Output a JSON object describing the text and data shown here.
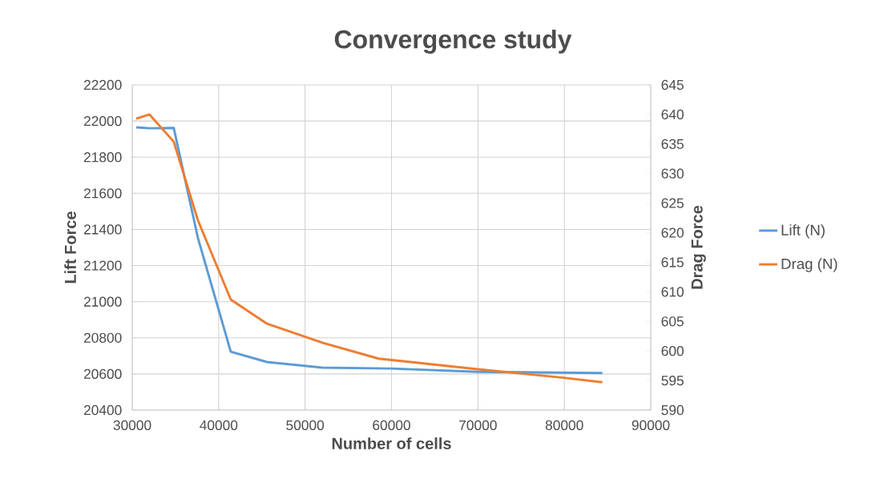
{
  "chart_data": {
    "type": "line",
    "title": "Convergence study",
    "xlabel": "Number of cells",
    "ylabel": "Lift Force",
    "y2label": "Drag  Force",
    "xlim": [
      30000,
      90000
    ],
    "xticks": [
      30000,
      40000,
      50000,
      60000,
      70000,
      80000,
      90000
    ],
    "ylim": [
      20400,
      22200
    ],
    "yticks": [
      20400,
      20600,
      20800,
      21000,
      21200,
      21400,
      21600,
      21800,
      22000,
      22200
    ],
    "y2lim": [
      590,
      645
    ],
    "y2ticks": [
      590,
      595,
      600,
      605,
      610,
      615,
      620,
      625,
      630,
      635,
      640,
      645
    ],
    "grid": true,
    "legend": "right",
    "marker": "none",
    "line_style": "solid",
    "series": [
      {
        "name": "Lift (N)",
        "color": "#5b9bd5",
        "x": [
          30460,
          32000,
          34800,
          37600,
          41400,
          45600,
          52000,
          60000,
          70000,
          84400
        ],
        "values": [
          21965,
          21960,
          21962,
          21353,
          20723,
          20666,
          20635,
          20630,
          20612,
          20605
        ]
      },
      {
        "name": "Drag (N)",
        "color": "#ed7d31",
        "axis": "y2",
        "x": [
          30460,
          32000,
          34800,
          37600,
          41400,
          45600,
          52000,
          58500,
          70000,
          79700,
          84400
        ],
        "values": [
          639.3,
          640.0,
          635.4,
          622.1,
          608.7,
          604.6,
          601.4,
          598.7,
          596.9,
          595.5,
          594.7
        ]
      }
    ]
  }
}
